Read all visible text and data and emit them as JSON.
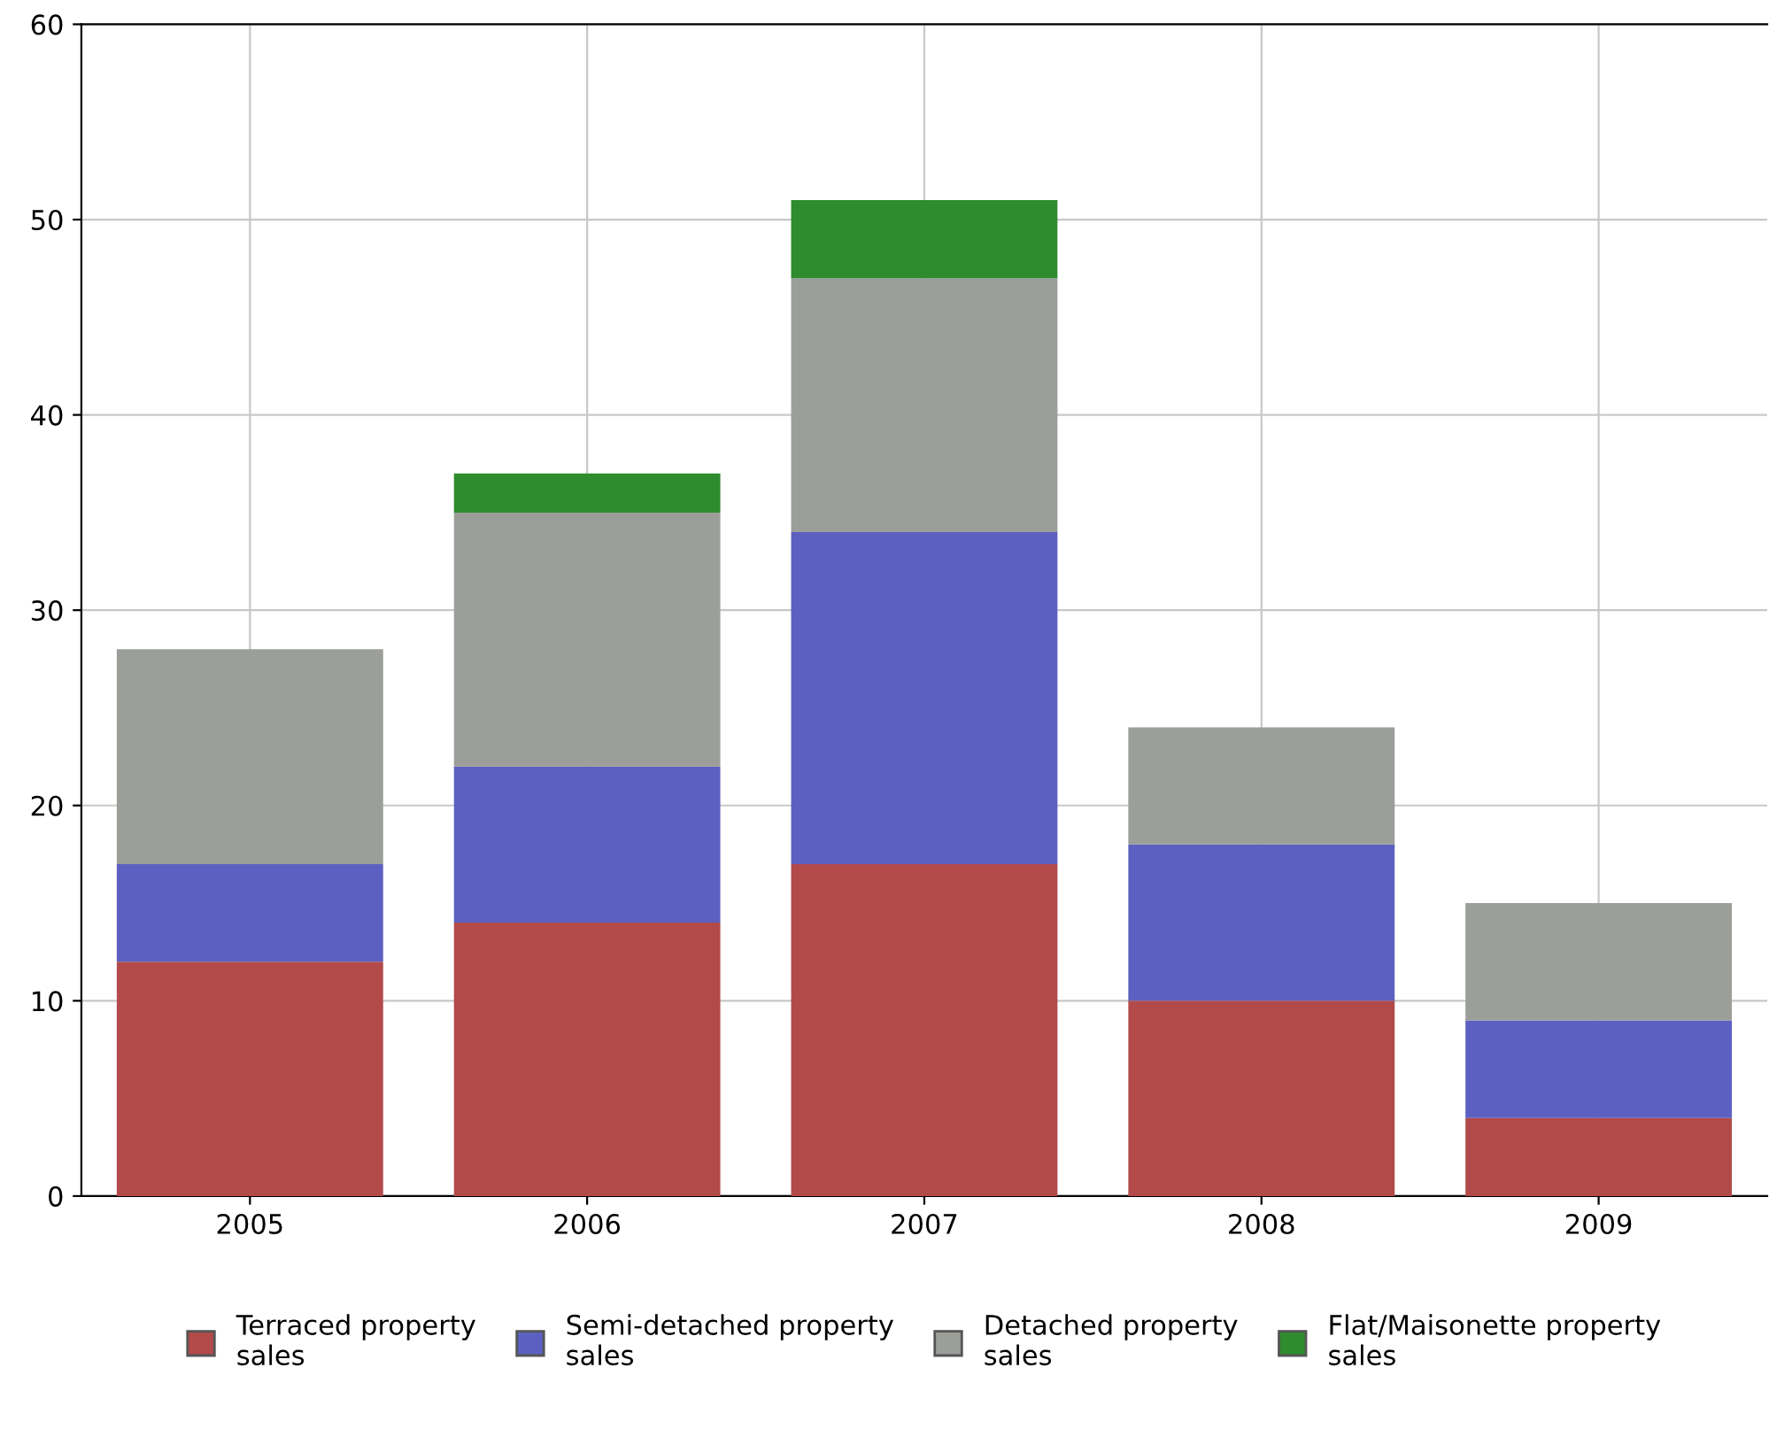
{
  "chart_data": {
    "type": "bar",
    "stacked": true,
    "categories": [
      "2005",
      "2006",
      "2007",
      "2008",
      "2009"
    ],
    "series": [
      {
        "name": "Terraced property sales",
        "color": "#b24a4a",
        "values": [
          12,
          14,
          17,
          10,
          4
        ]
      },
      {
        "name": "Semi-detached property sales",
        "color": "#5c60c0",
        "values": [
          5,
          8,
          17,
          8,
          5
        ]
      },
      {
        "name": "Detached property sales",
        "color": "#9b9e99",
        "values": [
          11,
          13,
          13,
          6,
          6
        ]
      },
      {
        "name": "Flat/Maisonette property sales",
        "color": "#2e8b2e",
        "values": [
          0,
          2,
          4,
          0,
          0
        ]
      }
    ],
    "ylim": [
      0,
      60
    ],
    "yticks": [
      0,
      10,
      20,
      30,
      40,
      50,
      60
    ],
    "grid": true,
    "legend": "bottom"
  }
}
